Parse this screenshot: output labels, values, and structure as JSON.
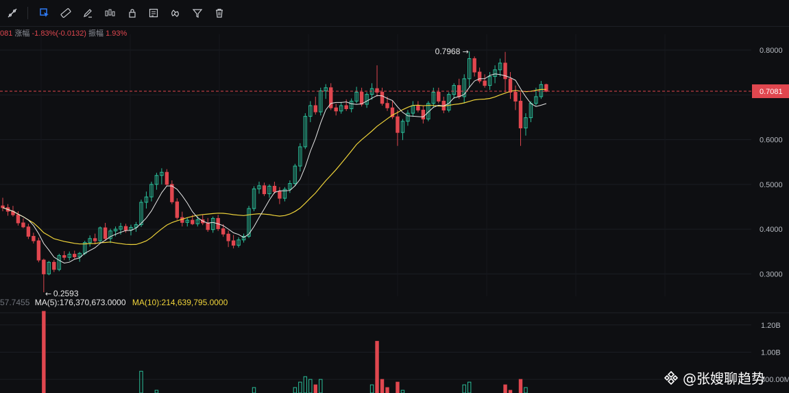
{
  "toolbar": {
    "tools": [
      {
        "name": "line-tool-icon"
      },
      {
        "name": "select-tool-icon",
        "active": true
      },
      {
        "name": "ruler-icon"
      },
      {
        "name": "pen-icon"
      },
      {
        "name": "candlestick-icon"
      },
      {
        "name": "lock-icon"
      },
      {
        "name": "note-icon"
      },
      {
        "name": "magnet-icon"
      },
      {
        "name": "filter-icon"
      },
      {
        "name": "trash-icon"
      }
    ]
  },
  "header": {
    "price_partial": "081",
    "change_label": "涨幅",
    "change_value": "-1.83%(-0.0132)",
    "amplitude_label": "振幅",
    "amplitude_value": "1.93%"
  },
  "volume_header": {
    "partial_value": "57.7455",
    "ma5": "MA(5):176,370,673.0000",
    "ma10": "MA(10):214,639,795.0000"
  },
  "price_axis": {
    "ticks": [
      "0.8000",
      "0.7000",
      "0.6000",
      "0.5000",
      "0.4000",
      "0.3000"
    ],
    "current_price": "0.7081"
  },
  "volume_axis": {
    "ticks": [
      "1.20B",
      "1.00B",
      "800.00M"
    ]
  },
  "annotations": {
    "high": "0.7968",
    "low": "0.2593"
  },
  "watermark": {
    "text": "@张嫂聊趋势"
  },
  "colors": {
    "up": "#2bbf9a",
    "down": "#e0474f",
    "ma_short": "#e8e8e8",
    "ma_long": "#f0d43a",
    "background": "#0e0f12",
    "price_tag": "#e0474f"
  },
  "chart_data": {
    "type": "candlestick",
    "y_range": [
      0.25,
      0.82
    ],
    "volume_range": [
      0.7,
      1.32
    ],
    "current_price": 0.7081,
    "candles": [
      [
        0.452,
        0.47,
        0.44,
        0.448
      ],
      [
        0.448,
        0.456,
        0.43,
        0.44
      ],
      [
        0.44,
        0.452,
        0.428,
        0.432
      ],
      [
        0.432,
        0.44,
        0.408,
        0.414
      ],
      [
        0.414,
        0.424,
        0.402,
        0.405
      ],
      [
        0.405,
        0.412,
        0.378,
        0.384
      ],
      [
        0.384,
        0.392,
        0.368,
        0.374
      ],
      [
        0.374,
        0.381,
        0.326,
        0.331
      ],
      [
        0.331,
        0.334,
        0.259,
        0.3
      ],
      [
        0.3,
        0.329,
        0.297,
        0.326
      ],
      [
        0.326,
        0.331,
        0.304,
        0.31
      ],
      [
        0.31,
        0.345,
        0.306,
        0.341
      ],
      [
        0.341,
        0.351,
        0.331,
        0.337
      ],
      [
        0.337,
        0.35,
        0.33,
        0.344
      ],
      [
        0.344,
        0.352,
        0.334,
        0.338
      ],
      [
        0.338,
        0.349,
        0.327,
        0.346
      ],
      [
        0.346,
        0.374,
        0.342,
        0.37
      ],
      [
        0.37,
        0.386,
        0.361,
        0.379
      ],
      [
        0.379,
        0.39,
        0.366,
        0.374
      ],
      [
        0.374,
        0.406,
        0.37,
        0.403
      ],
      [
        0.403,
        0.414,
        0.374,
        0.379
      ],
      [
        0.379,
        0.401,
        0.369,
        0.396
      ],
      [
        0.396,
        0.406,
        0.384,
        0.4
      ],
      [
        0.4,
        0.414,
        0.388,
        0.406
      ],
      [
        0.406,
        0.412,
        0.392,
        0.398
      ],
      [
        0.398,
        0.41,
        0.386,
        0.404
      ],
      [
        0.404,
        0.416,
        0.394,
        0.41
      ],
      [
        0.41,
        0.466,
        0.405,
        0.46
      ],
      [
        0.46,
        0.484,
        0.446,
        0.472
      ],
      [
        0.472,
        0.506,
        0.462,
        0.5
      ],
      [
        0.5,
        0.526,
        0.488,
        0.52
      ],
      [
        0.52,
        0.536,
        0.5,
        0.527
      ],
      [
        0.527,
        0.534,
        0.496,
        0.5
      ],
      [
        0.5,
        0.509,
        0.456,
        0.461
      ],
      [
        0.461,
        0.469,
        0.421,
        0.426
      ],
      [
        0.426,
        0.439,
        0.406,
        0.415
      ],
      [
        0.415,
        0.426,
        0.406,
        0.42
      ],
      [
        0.42,
        0.432,
        0.409,
        0.412
      ],
      [
        0.412,
        0.429,
        0.406,
        0.421
      ],
      [
        0.421,
        0.432,
        0.409,
        0.414
      ],
      [
        0.414,
        0.425,
        0.394,
        0.399
      ],
      [
        0.399,
        0.428,
        0.392,
        0.424
      ],
      [
        0.424,
        0.432,
        0.396,
        0.401
      ],
      [
        0.401,
        0.411,
        0.383,
        0.389
      ],
      [
        0.389,
        0.397,
        0.36,
        0.374
      ],
      [
        0.374,
        0.387,
        0.357,
        0.364
      ],
      [
        0.364,
        0.382,
        0.359,
        0.376
      ],
      [
        0.376,
        0.39,
        0.37,
        0.384
      ],
      [
        0.384,
        0.452,
        0.38,
        0.446
      ],
      [
        0.446,
        0.496,
        0.44,
        0.49
      ],
      [
        0.49,
        0.506,
        0.479,
        0.497
      ],
      [
        0.497,
        0.504,
        0.474,
        0.479
      ],
      [
        0.479,
        0.5,
        0.47,
        0.496
      ],
      [
        0.496,
        0.506,
        0.479,
        0.484
      ],
      [
        0.484,
        0.494,
        0.456,
        0.469
      ],
      [
        0.469,
        0.494,
        0.462,
        0.489
      ],
      [
        0.489,
        0.509,
        0.481,
        0.502
      ],
      [
        0.502,
        0.546,
        0.496,
        0.541
      ],
      [
        0.541,
        0.592,
        0.529,
        0.584
      ],
      [
        0.584,
        0.659,
        0.579,
        0.652
      ],
      [
        0.652,
        0.686,
        0.639,
        0.676
      ],
      [
        0.676,
        0.696,
        0.656,
        0.662
      ],
      [
        0.662,
        0.716,
        0.654,
        0.709
      ],
      [
        0.709,
        0.724,
        0.691,
        0.716
      ],
      [
        0.716,
        0.726,
        0.666,
        0.671
      ],
      [
        0.671,
        0.68,
        0.654,
        0.664
      ],
      [
        0.664,
        0.684,
        0.658,
        0.676
      ],
      [
        0.676,
        0.69,
        0.664,
        0.669
      ],
      [
        0.669,
        0.692,
        0.661,
        0.686
      ],
      [
        0.686,
        0.718,
        0.681,
        0.706
      ],
      [
        0.706,
        0.716,
        0.674,
        0.679
      ],
      [
        0.679,
        0.706,
        0.671,
        0.701
      ],
      [
        0.701,
        0.726,
        0.689,
        0.714
      ],
      [
        0.714,
        0.766,
        0.696,
        0.706
      ],
      [
        0.706,
        0.716,
        0.676,
        0.681
      ],
      [
        0.681,
        0.696,
        0.664,
        0.671
      ],
      [
        0.671,
        0.686,
        0.646,
        0.651
      ],
      [
        0.651,
        0.666,
        0.586,
        0.616
      ],
      [
        0.616,
        0.646,
        0.599,
        0.641
      ],
      [
        0.641,
        0.666,
        0.631,
        0.659
      ],
      [
        0.659,
        0.686,
        0.651,
        0.676
      ],
      [
        0.676,
        0.686,
        0.661,
        0.666
      ],
      [
        0.666,
        0.676,
        0.636,
        0.646
      ],
      [
        0.646,
        0.686,
        0.641,
        0.681
      ],
      [
        0.681,
        0.716,
        0.671,
        0.706
      ],
      [
        0.706,
        0.716,
        0.681,
        0.686
      ],
      [
        0.686,
        0.696,
        0.659,
        0.666
      ],
      [
        0.666,
        0.706,
        0.661,
        0.701
      ],
      [
        0.701,
        0.726,
        0.691,
        0.721
      ],
      [
        0.721,
        0.736,
        0.691,
        0.696
      ],
      [
        0.696,
        0.746,
        0.681,
        0.736
      ],
      [
        0.736,
        0.797,
        0.716,
        0.781
      ],
      [
        0.781,
        0.786,
        0.741,
        0.751
      ],
      [
        0.751,
        0.761,
        0.726,
        0.731
      ],
      [
        0.731,
        0.746,
        0.716,
        0.721
      ],
      [
        0.721,
        0.751,
        0.711,
        0.741
      ],
      [
        0.741,
        0.766,
        0.726,
        0.756
      ],
      [
        0.756,
        0.781,
        0.741,
        0.771
      ],
      [
        0.771,
        0.796,
        0.706,
        0.736
      ],
      [
        0.736,
        0.751,
        0.691,
        0.706
      ],
      [
        0.706,
        0.721,
        0.666,
        0.686
      ],
      [
        0.686,
        0.706,
        0.586,
        0.626
      ],
      [
        0.626,
        0.659,
        0.609,
        0.649
      ],
      [
        0.649,
        0.686,
        0.639,
        0.681
      ],
      [
        0.681,
        0.716,
        0.676,
        0.696
      ],
      [
        0.696,
        0.731,
        0.691,
        0.723
      ],
      [
        0.723,
        0.725,
        0.706,
        0.708
      ]
    ],
    "volumes": [
      0.42,
      0.38,
      0.36,
      0.4,
      0.35,
      0.44,
      0.48,
      0.55,
      1.3,
      0.6,
      0.45,
      0.5,
      0.4,
      0.38,
      0.36,
      0.42,
      0.48,
      0.52,
      0.46,
      0.58,
      0.62,
      0.55,
      0.5,
      0.44,
      0.4,
      0.42,
      0.48,
      0.86,
      0.7,
      0.66,
      0.72,
      0.68,
      0.64,
      0.6,
      0.58,
      0.5,
      0.44,
      0.4,
      0.42,
      0.38,
      0.44,
      0.48,
      0.46,
      0.5,
      0.52,
      0.48,
      0.44,
      0.5,
      0.7,
      0.74,
      0.6,
      0.58,
      0.56,
      0.54,
      0.6,
      0.58,
      0.62,
      0.74,
      0.78,
      0.82,
      0.8,
      0.76,
      0.8,
      0.7,
      0.68,
      0.64,
      0.62,
      0.6,
      0.62,
      0.66,
      0.64,
      0.7,
      0.76,
      1.08,
      0.8,
      0.74,
      0.7,
      0.78,
      0.72,
      0.66,
      0.62,
      0.6,
      0.58,
      0.62,
      0.66,
      0.64,
      0.62,
      0.66,
      0.7,
      0.68,
      0.76,
      0.78,
      0.7,
      0.66,
      0.62,
      0.64,
      0.66,
      0.68,
      0.76,
      0.72,
      0.7,
      0.8,
      0.74,
      0.7,
      0.68,
      0.66,
      0.64
    ]
  }
}
